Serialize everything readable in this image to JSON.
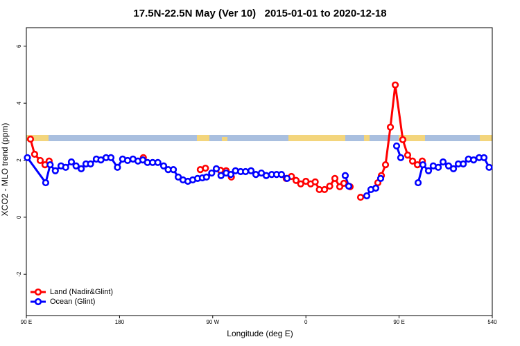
{
  "chart_data": {
    "type": "line",
    "title": "17.5N-22.5N May (Ver 10)   2015-01-01 to 2020-12-18",
    "x_label": "Longitude (deg E)",
    "y_label": "XCO2 - MLO trend (ppm)",
    "xlim": [
      90,
      540
    ],
    "ylim": [
      -3.45,
      6.65
    ],
    "xticks": [
      {
        "value": 90,
        "label": "90 E"
      },
      180,
      {
        "value": 270,
        "label": "90 W"
      },
      {
        "value": 360,
        "label": "0"
      },
      {
        "value": 450,
        "label": "90 E"
      },
      540
    ],
    "yticks": [
      -2,
      0,
      2,
      4,
      6
    ],
    "legend": "bottom-left",
    "series": [
      {
        "name": "Land (Nadir&Glint)",
        "color": "#ff0000",
        "x": [
          94,
          98,
          103.4,
          108,
          112,
          150,
          203,
          230,
          258,
          263,
          270,
          277.5,
          283,
          288,
          315,
          341,
          346,
          350.5,
          355,
          360,
          364.6,
          369,
          373,
          378,
          383,
          388,
          392.7,
          396.7,
          402.7,
          408,
          412.8,
          420,
          429.5,
          432.9,
          436.9,
          441.6,
          446.3,
          453.6,
          458.3,
          463,
          467.7,
          472.4
        ],
        "values": [
          2.74,
          2.21,
          1.99,
          1.84,
          1.97,
          null,
          2.09,
          null,
          1.67,
          1.72,
          null,
          1.65,
          1.63,
          1.41,
          null,
          1.36,
          1.43,
          1.29,
          1.17,
          1.26,
          1.17,
          1.24,
          0.97,
          0.97,
          1.09,
          1.36,
          1.07,
          1.19,
          1.07,
          null,
          0.7,
          null,
          1.21,
          1.46,
          1.84,
          3.16,
          4.64,
          2.72,
          2.18,
          1.97,
          1.84,
          1.97
        ]
      },
      {
        "name": "Ocean (Glint)",
        "color": "#0000ff",
        "x": [
          91,
          108.7,
          113,
          118,
          123.5,
          128,
          133.5,
          138,
          143,
          147.6,
          152,
          157.6,
          162,
          167,
          171.7,
          178,
          183,
          187.8,
          193,
          197.8,
          202.5,
          207,
          212,
          217,
          222.6,
          227,
          232,
          236.7,
          241.3,
          246,
          250.7,
          255.4,
          260,
          264,
          269,
          273.5,
          278,
          283,
          287.5,
          292,
          297,
          301.7,
          307,
          311.7,
          317,
          321.7,
          327,
          331.7,
          336.4,
          341.8,
          370,
          398,
          401.4,
          410,
          418.8,
          422.8,
          427.5,
          432.2,
          440,
          447.6,
          451.6,
          460,
          468.4,
          473,
          478.4,
          483,
          487.8,
          492.5,
          497.8,
          502.5,
          507.2,
          512,
          517,
          522,
          527.3,
          532,
          537
        ],
        "values": [
          2.09,
          1.21,
          1.84,
          1.63,
          1.8,
          1.75,
          1.94,
          1.8,
          1.7,
          1.87,
          1.87,
          2.04,
          2.01,
          2.09,
          2.09,
          1.75,
          2.04,
          1.99,
          2.04,
          1.97,
          2.01,
          1.92,
          1.92,
          1.92,
          1.8,
          1.67,
          1.67,
          1.41,
          1.31,
          1.26,
          1.31,
          1.36,
          1.38,
          1.41,
          1.55,
          1.7,
          1.46,
          1.55,
          1.5,
          1.63,
          1.6,
          1.6,
          1.63,
          1.5,
          1.55,
          1.46,
          1.5,
          1.5,
          1.5,
          1.36,
          null,
          1.46,
          1.09,
          null,
          0.75,
          0.97,
          1.02,
          1.36,
          null,
          2.5,
          2.09,
          null,
          1.21,
          1.84,
          1.63,
          1.8,
          1.75,
          1.94,
          1.8,
          1.7,
          1.87,
          1.87,
          2.04,
          2.01,
          2.09,
          2.09,
          1.75
        ]
      }
    ]
  }
}
